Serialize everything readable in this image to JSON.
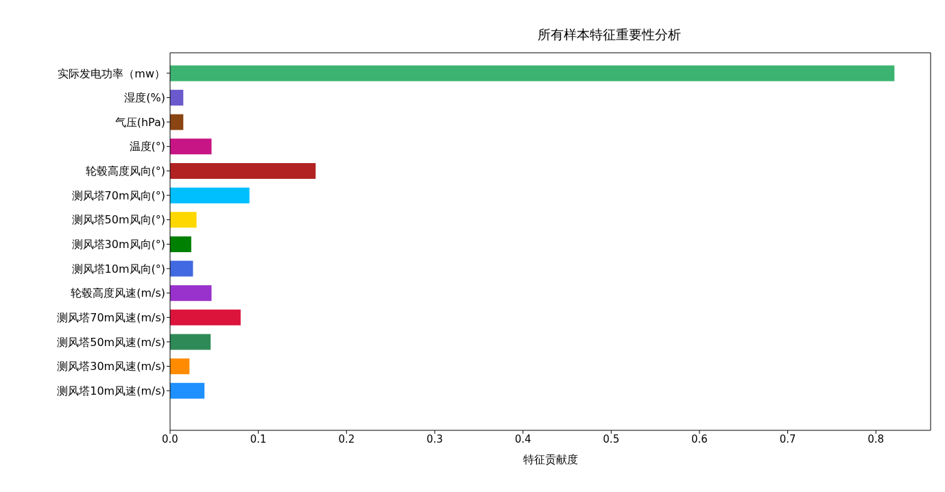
{
  "chart_data": {
    "type": "bar",
    "orientation": "horizontal",
    "title": "所有样本特征重要性分析",
    "xlabel": "特征贡献度",
    "categories": [
      "实际发电功率（mw）",
      "湿度(%)",
      "气压(hPa)",
      "温度(°)",
      "轮毂高度风向(°)",
      "测风塔70m风向(°)",
      "测风塔50m风向(°)",
      "测风塔30m风向(°)",
      "测风塔10m风向(°)",
      "轮毂高度风速(m/s)",
      "测风塔70m风速(m/s)",
      "测风塔50m风速(m/s)",
      "测风塔30m风速(m/s)",
      "测风塔10m风速(m/s)"
    ],
    "values": [
      0.821,
      0.015,
      0.015,
      0.047,
      0.165,
      0.09,
      0.03,
      0.024,
      0.026,
      0.047,
      0.08,
      0.046,
      0.022,
      0.039
    ],
    "colors": [
      "#3cb371",
      "#6a5acd",
      "#8b4513",
      "#c71585",
      "#b22222",
      "#00bfff",
      "#ffd700",
      "#008000",
      "#4169e1",
      "#9932cc",
      "#dc143c",
      "#2e8b57",
      "#ff8c00",
      "#1e90ff"
    ],
    "xlim": [
      0,
      0.862
    ],
    "xticks": [
      {
        "value": 0,
        "label": "0.0"
      },
      0.1,
      0.2,
      0.3,
      0.4,
      0.5,
      0.6,
      0.7,
      0.8
    ],
    "grid": false,
    "legend": false
  }
}
